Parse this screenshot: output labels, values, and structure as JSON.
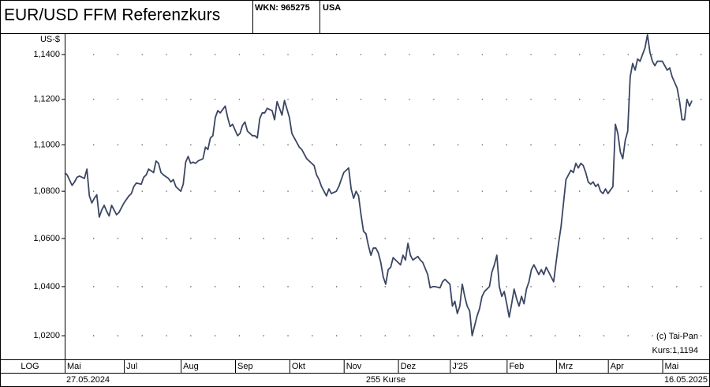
{
  "header": {
    "title": "EUR/USD  FFM Referenzkurs",
    "wkn": "WKN: 965275",
    "country": "USA"
  },
  "chart_data": {
    "type": "line",
    "log_scale": true,
    "grid": true,
    "color": "#3b4663",
    "y_unit": "US-$",
    "scale_label": "LOG",
    "annotations": [
      "(c) Tai-Pan",
      "Kurs:1,1194"
    ],
    "footer": {
      "start": "27.05.2024",
      "count": "255 Kurse",
      "end": "16.05.2025"
    },
    "ylim": [
      1.0105,
      1.1497
    ],
    "yticks": [
      {
        "value": 1.02,
        "label": "1,0200"
      },
      {
        "value": 1.04,
        "label": "1,0400"
      },
      {
        "value": 1.06,
        "label": "1,0600"
      },
      {
        "value": 1.08,
        "label": "1,0800"
      },
      {
        "value": 1.1,
        "label": "1,1000"
      },
      {
        "value": 1.12,
        "label": "1,1200"
      },
      {
        "value": 1.14,
        "label": "1,1400"
      }
    ],
    "xlim": [
      0,
      261
    ],
    "xticks": [
      {
        "value": 0,
        "label": "Mai"
      },
      {
        "value": 24,
        "label": "Jul"
      },
      {
        "value": 47,
        "label": "Aug"
      },
      {
        "value": 69,
        "label": "Sep"
      },
      {
        "value": 91,
        "label": "Okt"
      },
      {
        "value": 113,
        "label": "Nov"
      },
      {
        "value": 135,
        "label": "Dez"
      },
      {
        "value": 156,
        "label": "J'25"
      },
      {
        "value": 179,
        "label": "Feb"
      },
      {
        "value": 199,
        "label": "Mrz"
      },
      {
        "value": 220,
        "label": "Apr"
      },
      {
        "value": 242,
        "label": "Mai"
      }
    ],
    "x": [
      0,
      1,
      3,
      4,
      5,
      6,
      8,
      9,
      10,
      11,
      12,
      13,
      14,
      15,
      16,
      17,
      18,
      19,
      21,
      22,
      23,
      24,
      26,
      27,
      28,
      29,
      31,
      32,
      33,
      34,
      36,
      37,
      38,
      39,
      40,
      42,
      43,
      44,
      45,
      47,
      48,
      49,
      50,
      51,
      52,
      53,
      54,
      56,
      57,
      58,
      59,
      60,
      61,
      62,
      63,
      65,
      66,
      67,
      68,
      70,
      71,
      72,
      73,
      74,
      76,
      77,
      78,
      79,
      80,
      81,
      82,
      84,
      85,
      86,
      87,
      88,
      89,
      91,
      92,
      93,
      95,
      96,
      97,
      98,
      100,
      101,
      102,
      103,
      104,
      106,
      107,
      108,
      110,
      111,
      112,
      113,
      115,
      116,
      117,
      118,
      119,
      120,
      121,
      122,
      123,
      124,
      125,
      126,
      127,
      128,
      129,
      130,
      131,
      132,
      133,
      134,
      135,
      136,
      137,
      138,
      139,
      140,
      141,
      143,
      144,
      145,
      147,
      148,
      149,
      150,
      152,
      153,
      154,
      156,
      157,
      158,
      159,
      160,
      161,
      162,
      163,
      164,
      165,
      166,
      167,
      168,
      169,
      170,
      172,
      173,
      174,
      175,
      176,
      177,
      178,
      179,
      180,
      181,
      182,
      183,
      184,
      185,
      186,
      187,
      188,
      189,
      190,
      191,
      192,
      193,
      194,
      195,
      196,
      197,
      198,
      199,
      200,
      201,
      202,
      203,
      204,
      205,
      206,
      207,
      208,
      209,
      210,
      211,
      212,
      213,
      214,
      215,
      216,
      217,
      218,
      219,
      220,
      222,
      223,
      224,
      225,
      226,
      227,
      228,
      229,
      230,
      231,
      232,
      233,
      234,
      235,
      236,
      237,
      238,
      239,
      240,
      242,
      243,
      244,
      245,
      246,
      248,
      249,
      250,
      251,
      252,
      253,
      254
    ],
    "values": [
      1.088,
      1.087,
      1.0825,
      1.084,
      1.086,
      1.0865,
      1.0855,
      1.0895,
      1.078,
      1.075,
      1.077,
      1.0785,
      1.069,
      1.072,
      1.074,
      1.0715,
      1.0695,
      1.074,
      1.07,
      1.071,
      1.073,
      1.075,
      1.078,
      1.079,
      1.082,
      1.0835,
      1.083,
      1.086,
      1.087,
      1.0895,
      1.088,
      1.093,
      1.092,
      1.088,
      1.087,
      1.0855,
      1.084,
      1.085,
      1.082,
      1.08,
      1.083,
      1.0925,
      1.095,
      1.092,
      1.0925,
      1.092,
      1.093,
      1.094,
      1.099,
      1.098,
      1.103,
      1.104,
      1.112,
      1.115,
      1.114,
      1.117,
      1.112,
      1.108,
      1.109,
      1.104,
      1.105,
      1.1085,
      1.11,
      1.106,
      1.104,
      1.104,
      1.103,
      1.1115,
      1.114,
      1.114,
      1.116,
      1.115,
      1.111,
      1.119,
      1.116,
      1.113,
      1.1195,
      1.112,
      1.105,
      1.103,
      1.099,
      1.098,
      1.096,
      1.094,
      1.092,
      1.091,
      1.087,
      1.085,
      1.082,
      1.078,
      1.081,
      1.079,
      1.08,
      1.082,
      1.085,
      1.088,
      1.09,
      1.081,
      1.077,
      1.08,
      1.078,
      1.07,
      1.063,
      1.062,
      1.057,
      1.053,
      1.056,
      1.056,
      1.054,
      1.05,
      1.044,
      1.041,
      1.047,
      1.048,
      1.052,
      1.051,
      1.05,
      1.049,
      1.053,
      1.051,
      1.058,
      1.053,
      1.051,
      1.0525,
      1.051,
      1.05,
      1.045,
      1.0395,
      1.04,
      1.04,
      1.0395,
      1.042,
      1.043,
      1.041,
      1.032,
      1.034,
      1.029,
      1.032,
      1.041,
      1.036,
      1.032,
      1.03,
      1.02,
      1.024,
      1.028,
      1.031,
      1.036,
      1.038,
      1.04,
      1.046,
      1.049,
      1.053,
      1.04,
      1.036,
      1.038,
      1.033,
      1.0275,
      1.033,
      1.039,
      1.035,
      1.032,
      1.036,
      1.033,
      1.039,
      1.042,
      1.047,
      1.049,
      1.047,
      1.045,
      1.047,
      1.045,
      1.048,
      1.046,
      1.044,
      1.042,
      1.05,
      1.058,
      1.065,
      1.075,
      1.085,
      1.087,
      1.089,
      1.088,
      1.092,
      1.09,
      1.092,
      1.091,
      1.088,
      1.084,
      1.083,
      1.084,
      1.082,
      1.083,
      1.08,
      1.079,
      1.081,
      1.079,
      1.082,
      1.109,
      1.105,
      1.097,
      1.094,
      1.102,
      1.106,
      1.13,
      1.136,
      1.133,
      1.138,
      1.137,
      1.14,
      1.143,
      1.149,
      1.141,
      1.137,
      1.135,
      1.137,
      1.137,
      1.135,
      1.133,
      1.134,
      1.13,
      1.125,
      1.119,
      1.111,
      1.111,
      1.12,
      1.117,
      1.1194
    ]
  }
}
